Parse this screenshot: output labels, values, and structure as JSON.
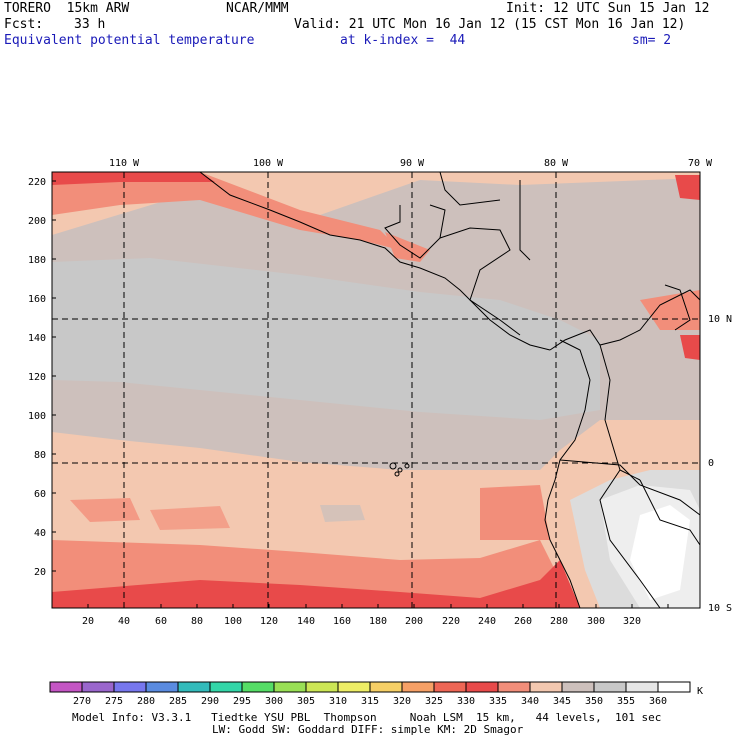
{
  "header": {
    "model": "TORERO  15km ARW",
    "org": "NCAR/MMM",
    "init": "Init: 12 UTC Sun 15 Jan 12",
    "fcst_label": "Fcst:",
    "fcst_value": "33 h",
    "valid": "Valid: 21 UTC Mon 16 Jan 12 (15 CST Mon 16 Jan 12)",
    "field": "Equivalent potential temperature",
    "level": "at k-index =  44",
    "smoothing": "sm= 2"
  },
  "map": {
    "lon_labels": [
      "110 W",
      "100 W",
      "90 W",
      "80 W",
      "70 W"
    ],
    "lat_labels": [
      "10 N",
      "0",
      "10 S"
    ],
    "y_ticks": [
      "220",
      "200",
      "180",
      "160",
      "140",
      "120",
      "100",
      "80",
      "60",
      "40",
      "20"
    ],
    "x_ticks": [
      "20",
      "40",
      "60",
      "80",
      "100",
      "120",
      "140",
      "160",
      "180",
      "200",
      "220",
      "240",
      "260",
      "280",
      "300",
      "320"
    ]
  },
  "colorbar": {
    "unit": "K",
    "labels": [
      "270",
      "275",
      "280",
      "285",
      "290",
      "295",
      "300",
      "305",
      "310",
      "315",
      "320",
      "325",
      "330",
      "335",
      "340",
      "345",
      "350",
      "355",
      "360"
    ],
    "colors": [
      "#c455c4",
      "#9a66cc",
      "#7777ee",
      "#5a8be0",
      "#33bbbb",
      "#33d6a8",
      "#55dd66",
      "#99e055",
      "#cce655",
      "#eeee66",
      "#f6cf66",
      "#f6a066",
      "#ee6655",
      "#e84a4a",
      "#f28e7a",
      "#f3c8b0",
      "#cdc0bc",
      "#c8c8c8",
      "#e6e6e6",
      "#ffffff"
    ]
  },
  "footer": {
    "line1": "Model Info: V3.3.1   Tiedtke YSU PBL  Thompson     Noah LSM  15 km,   44 levels,  101 sec",
    "line2": "LW: Godd SW: Goddard DIFF: simple KM: 2D Smagor"
  }
}
